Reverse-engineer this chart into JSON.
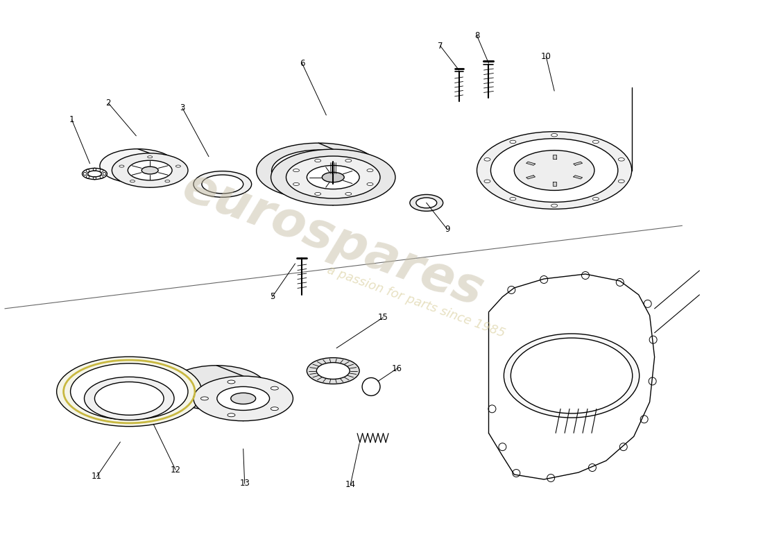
{
  "background_color": "#ffffff",
  "line_color": "#000000",
  "watermark_color1": "#c8c0a8",
  "watermark_color2": "#d4c890",
  "watermark_text1": "eurospares",
  "watermark_text2": "a passion for parts since 1985",
  "fig_width": 11.0,
  "fig_height": 8.0,
  "dpi": 100,
  "lw": 1.0
}
